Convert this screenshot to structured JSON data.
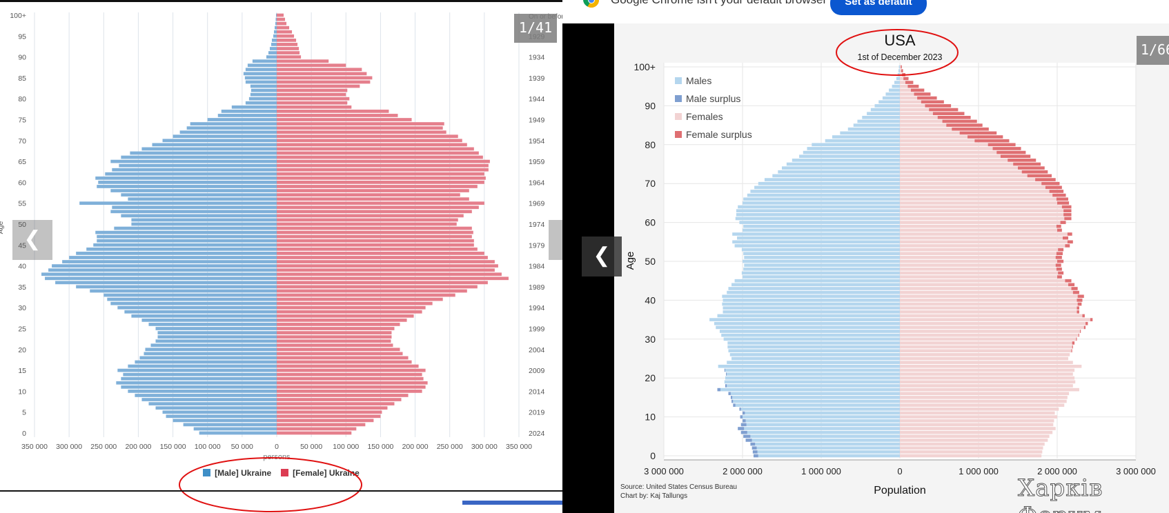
{
  "left_panel": {
    "counter": "1/41",
    "prev_arrow": "chevron-left-icon",
    "decorations": {
      "annotation_ellipse": "red-ellipse-around-legend"
    }
  },
  "right_panel": {
    "chrome": {
      "message": "Google Chrome isn't your default browser",
      "button": "Set as default",
      "icon": "chrome-logo-icon"
    },
    "counter": "1/66",
    "prev_arrow": "chevron-left-icon",
    "source_line1": "Source: United States Census Bureau",
    "source_line2": "Chart by: Kaj Tallungs",
    "watermark": "Харків Форум",
    "decorations": {
      "annotation_ellipse": "red-ellipse-around-title"
    }
  },
  "chart_data": [
    {
      "type": "bar",
      "orientation": "horizontal-population-pyramid",
      "title": "",
      "xlabel": "persons",
      "ylabel": "Age",
      "y_ticks": [
        "0",
        "5",
        "10",
        "15",
        "20",
        "25",
        "30",
        "35",
        "40",
        "45",
        "50",
        "55",
        "60",
        "65",
        "70",
        "75",
        "80",
        "85",
        "90",
        "95",
        "100+"
      ],
      "y2_top_label": "On or before",
      "y2_ticks": [
        "1929",
        "1934",
        "1939",
        "1944",
        "1949",
        "1954",
        "1959",
        "1964",
        "1969",
        "1974",
        "1979",
        "1984",
        "1989",
        "1994",
        "1999",
        "2004",
        "2009",
        "2014",
        "2019",
        "2024"
      ],
      "x_ticks": [
        "350 000",
        "300 000",
        "250 000",
        "200 000",
        "150 000",
        "100 000",
        "50 000",
        "0",
        "50 000",
        "100 000",
        "150 000",
        "200 000",
        "250 000",
        "300 000",
        "350 000"
      ],
      "xlim": [
        -350000,
        350000
      ],
      "grid": true,
      "legend": "bottom",
      "colors": {
        "male": "#7fb0d9",
        "female": "#e57f8c"
      },
      "ages": [
        0,
        1,
        2,
        3,
        4,
        5,
        6,
        7,
        8,
        9,
        10,
        11,
        12,
        13,
        14,
        15,
        16,
        17,
        18,
        19,
        20,
        21,
        22,
        23,
        24,
        25,
        26,
        27,
        28,
        29,
        30,
        31,
        32,
        33,
        34,
        35,
        36,
        37,
        38,
        39,
        40,
        41,
        42,
        43,
        44,
        45,
        46,
        47,
        48,
        49,
        50,
        51,
        52,
        53,
        54,
        55,
        56,
        57,
        58,
        59,
        60,
        61,
        62,
        63,
        64,
        65,
        66,
        67,
        68,
        69,
        70,
        71,
        72,
        73,
        74,
        75,
        76,
        77,
        78,
        79,
        80,
        81,
        82,
        83,
        84,
        85,
        86,
        87,
        88,
        89,
        90,
        91,
        92,
        93,
        94,
        95,
        96,
        97,
        98,
        99,
        100
      ],
      "series": [
        {
          "name": "[Male] Ukraine",
          "values": [
            112000,
            120000,
            135000,
            150000,
            160000,
            165000,
            175000,
            185000,
            195000,
            205000,
            215000,
            225000,
            232000,
            225000,
            222000,
            230000,
            215000,
            205000,
            198000,
            192000,
            190000,
            182000,
            175000,
            172000,
            172000,
            175000,
            185000,
            195000,
            210000,
            220000,
            230000,
            240000,
            245000,
            250000,
            270000,
            290000,
            320000,
            335000,
            340000,
            330000,
            325000,
            310000,
            300000,
            290000,
            275000,
            265000,
            260000,
            260000,
            262000,
            235000,
            210000,
            210000,
            225000,
            240000,
            238000,
            285000,
            215000,
            225000,
            240000,
            260000,
            258000,
            262000,
            248000,
            238000,
            228000,
            240000,
            225000,
            212000,
            195000,
            180000,
            165000,
            150000,
            140000,
            130000,
            125000,
            100000,
            85000,
            80000,
            65000,
            45000,
            40000,
            38000,
            37000,
            38000,
            45000,
            46000,
            48000,
            45000,
            42000,
            35000,
            15000,
            12000,
            10000,
            8000,
            7000,
            5000,
            4000,
            3000,
            2000,
            1500,
            1000
          ]
        },
        {
          "name": "[Female] Ukraine",
          "values": [
            108000,
            115000,
            128000,
            140000,
            150000,
            152000,
            160000,
            170000,
            180000,
            190000,
            210000,
            215000,
            218000,
            212000,
            210000,
            215000,
            205000,
            195000,
            190000,
            182000,
            178000,
            168000,
            165000,
            166000,
            166000,
            170000,
            178000,
            188000,
            198000,
            210000,
            215000,
            225000,
            240000,
            258000,
            275000,
            290000,
            305000,
            335000,
            325000,
            315000,
            320000,
            315000,
            305000,
            300000,
            290000,
            285000,
            285000,
            282000,
            284000,
            282000,
            260000,
            262000,
            270000,
            282000,
            292000,
            300000,
            278000,
            265000,
            278000,
            290000,
            300000,
            302000,
            300000,
            306000,
            306000,
            308000,
            298000,
            292000,
            285000,
            275000,
            268000,
            262000,
            245000,
            240000,
            242000,
            195000,
            175000,
            162000,
            108000,
            102000,
            105000,
            100000,
            102000,
            120000,
            135000,
            138000,
            130000,
            123000,
            100000,
            75000,
            35000,
            33000,
            32000,
            30000,
            28000,
            25000,
            22000,
            18000,
            14000,
            12000,
            10000
          ]
        }
      ]
    },
    {
      "type": "bar",
      "orientation": "horizontal-population-pyramid",
      "title": "USA",
      "subtitle": "1st of December 2023",
      "xlabel": "Population",
      "ylabel": "Age",
      "y_ticks": [
        "0",
        "10",
        "20",
        "30",
        "40",
        "50",
        "60",
        "70",
        "80",
        "90",
        "100+"
      ],
      "x_ticks": [
        "3 000 000",
        "2 000 000",
        "1 000 000",
        "0",
        "1 000 000",
        "2 000 000",
        "3 000 000"
      ],
      "xlim": [
        -3000000,
        3000000
      ],
      "grid": true,
      "legend": "top-left",
      "legend_entries": [
        "Males",
        "Male surplus",
        "Females",
        "Female surplus"
      ],
      "colors": {
        "male": "#b4d6ee",
        "male_surplus": "#7f9fd0",
        "female": "#f2d3d3",
        "female_surplus": "#df6f72"
      },
      "ages": [
        0,
        1,
        2,
        3,
        4,
        5,
        6,
        7,
        8,
        9,
        10,
        11,
        12,
        13,
        14,
        15,
        16,
        17,
        18,
        19,
        20,
        21,
        22,
        23,
        24,
        25,
        26,
        27,
        28,
        29,
        30,
        31,
        32,
        33,
        34,
        35,
        36,
        37,
        38,
        39,
        40,
        41,
        42,
        43,
        44,
        45,
        46,
        47,
        48,
        49,
        50,
        51,
        52,
        53,
        54,
        55,
        56,
        57,
        58,
        59,
        60,
        61,
        62,
        63,
        64,
        65,
        66,
        67,
        68,
        69,
        70,
        71,
        72,
        73,
        74,
        75,
        76,
        77,
        78,
        79,
        80,
        81,
        82,
        83,
        84,
        85,
        86,
        87,
        88,
        89,
        90,
        91,
        92,
        93,
        94,
        95,
        96,
        97,
        98,
        99,
        100
      ],
      "series": [
        {
          "name": "Males",
          "values": [
            1860000,
            1870000,
            1880000,
            1900000,
            1960000,
            1990000,
            2020000,
            2060000,
            2020000,
            2000000,
            2030000,
            2000000,
            2040000,
            2120000,
            2140000,
            2150000,
            2180000,
            2320000,
            2220000,
            2230000,
            2220000,
            2210000,
            2230000,
            2310000,
            2200000,
            2140000,
            2160000,
            2180000,
            2190000,
            2190000,
            2240000,
            2270000,
            2290000,
            2340000,
            2360000,
            2420000,
            2320000,
            2250000,
            2250000,
            2260000,
            2250000,
            2260000,
            2200000,
            2180000,
            2140000,
            2100000,
            2000000,
            2010000,
            1990000,
            1980000,
            2000000,
            1980000,
            1990000,
            2010000,
            2100000,
            2130000,
            2070000,
            2130000,
            2000000,
            1990000,
            2040000,
            2090000,
            2080000,
            2080000,
            2060000,
            2000000,
            1990000,
            1940000,
            1900000,
            1850000,
            1800000,
            1720000,
            1620000,
            1550000,
            1500000,
            1440000,
            1370000,
            1280000,
            1230000,
            1180000,
            1120000,
            950000,
            860000,
            760000,
            660000,
            590000,
            540000,
            480000,
            420000,
            370000,
            320000,
            270000,
            220000,
            180000,
            140000,
            100000,
            70000,
            45000,
            28000,
            18000,
            12000
          ]
        },
        {
          "name": "Females",
          "values": [
            1800000,
            1810000,
            1820000,
            1840000,
            1880000,
            1900000,
            1940000,
            1980000,
            1950000,
            1960000,
            2000000,
            1970000,
            2020000,
            2090000,
            2120000,
            2130000,
            2150000,
            2280000,
            2200000,
            2230000,
            2220000,
            2200000,
            2220000,
            2310000,
            2200000,
            2140000,
            2160000,
            2190000,
            2200000,
            2220000,
            2250000,
            2280000,
            2300000,
            2360000,
            2390000,
            2450000,
            2350000,
            2280000,
            2280000,
            2310000,
            2320000,
            2340000,
            2280000,
            2260000,
            2220000,
            2180000,
            2060000,
            2080000,
            2060000,
            2050000,
            2080000,
            2060000,
            2070000,
            2080000,
            2160000,
            2200000,
            2140000,
            2190000,
            2060000,
            2050000,
            2110000,
            2180000,
            2180000,
            2180000,
            2180000,
            2150000,
            2140000,
            2110000,
            2080000,
            2060000,
            2030000,
            1980000,
            1930000,
            1880000,
            1840000,
            1790000,
            1730000,
            1660000,
            1600000,
            1540000,
            1470000,
            1390000,
            1310000,
            1230000,
            1130000,
            1050000,
            980000,
            900000,
            820000,
            740000,
            650000,
            560000,
            470000,
            390000,
            310000,
            240000,
            170000,
            110000,
            70000,
            40000,
            25000
          ]
        }
      ]
    }
  ]
}
